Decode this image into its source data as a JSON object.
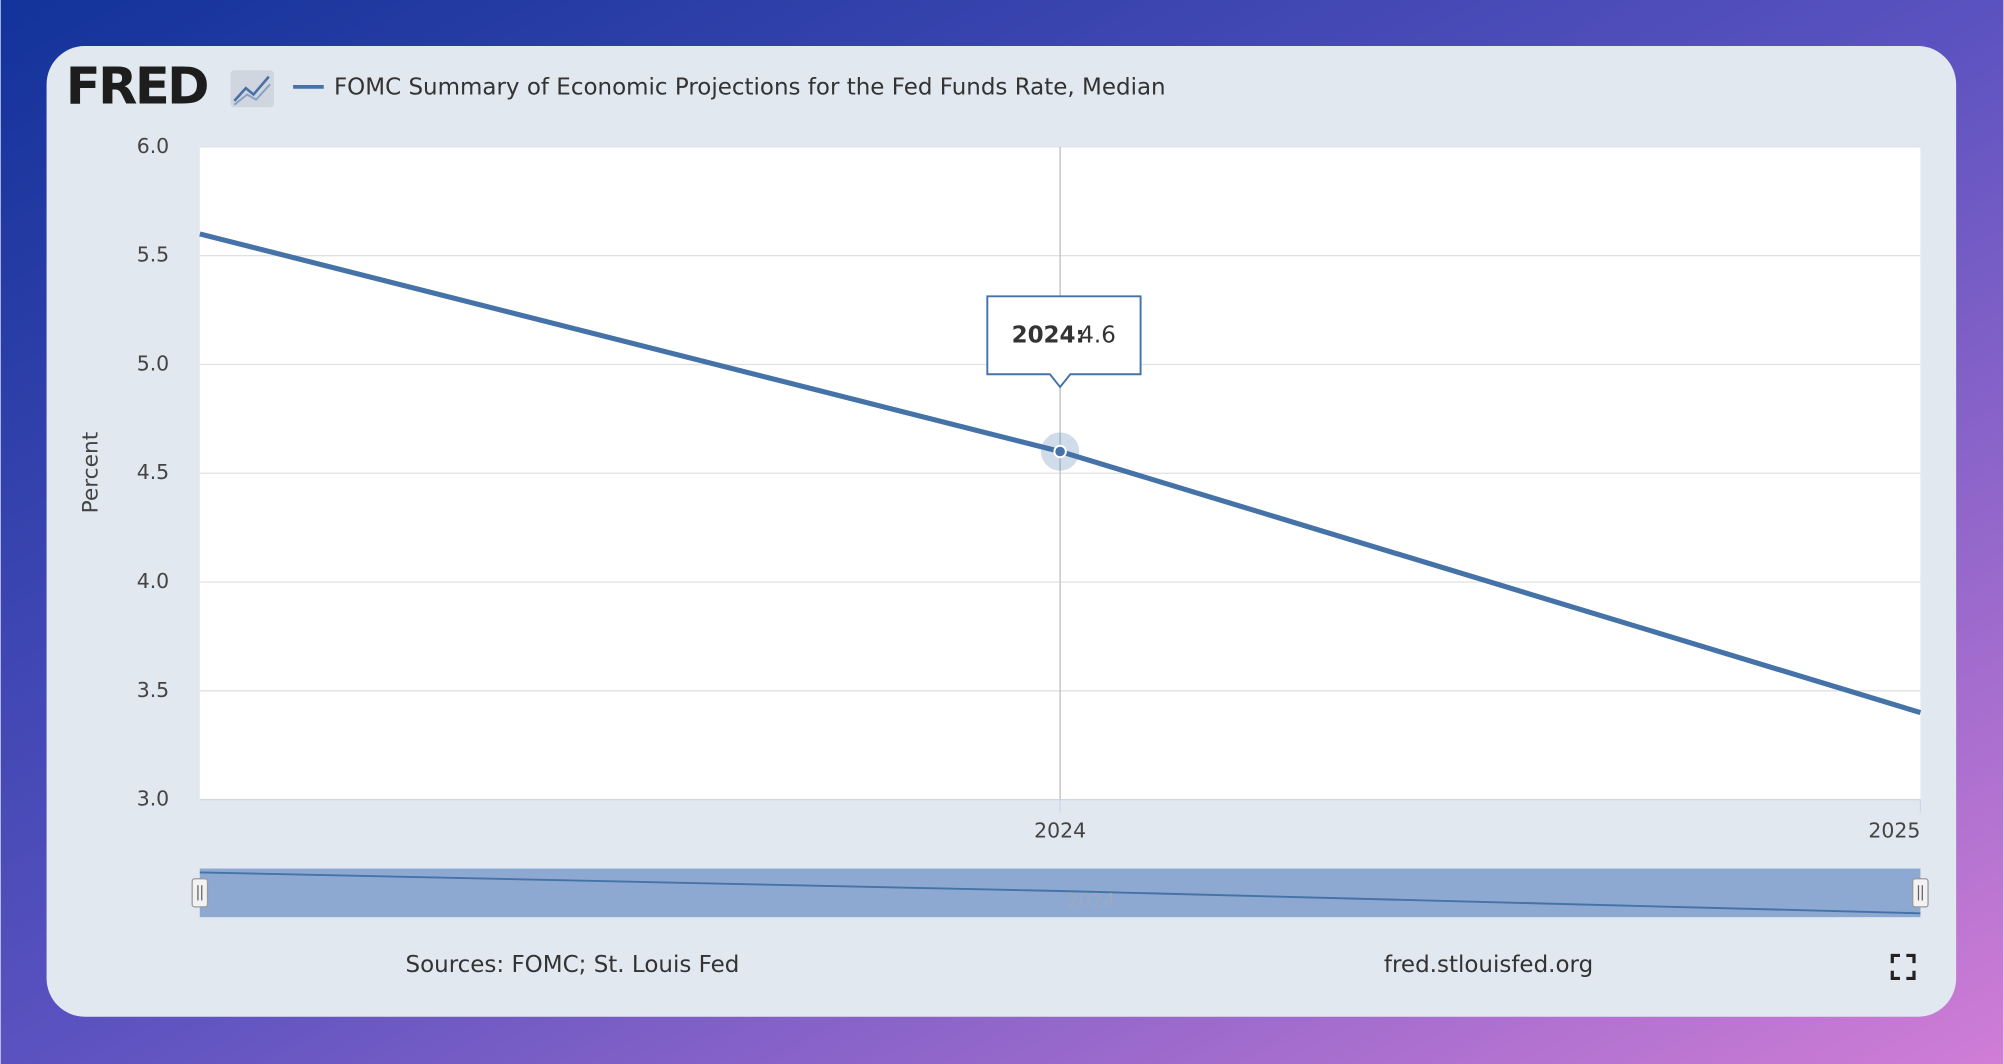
{
  "logo": "FRED",
  "sources": "Sources: FOMC; St. Louis Fed",
  "site": "fred.stlouisfed.org",
  "chart_data": {
    "type": "line",
    "y_label": "Percent",
    "x": [
      2023,
      2024,
      2025
    ],
    "xlim": [
      2023,
      2025
    ],
    "xticks": [
      2024,
      2025
    ],
    "ylim": [
      3,
      6
    ],
    "yticks": [
      {
        "value": 3,
        "label": "3.0"
      },
      3.5,
      {
        "value": 4,
        "label": "4.0"
      },
      4.5,
      {
        "value": 5,
        "label": "5.0"
      },
      5.5,
      {
        "value": 6,
        "label": "6.0"
      }
    ],
    "grid": true,
    "series": [
      {
        "name": "FOMC Summary of Economic Projections for the Fed Funds Rate, Median",
        "color": "#4572a7",
        "values": [
          5.6,
          4.6,
          3.4
        ]
      }
    ],
    "tooltip": {
      "label": "2024:",
      "value": 4.6
    }
  }
}
